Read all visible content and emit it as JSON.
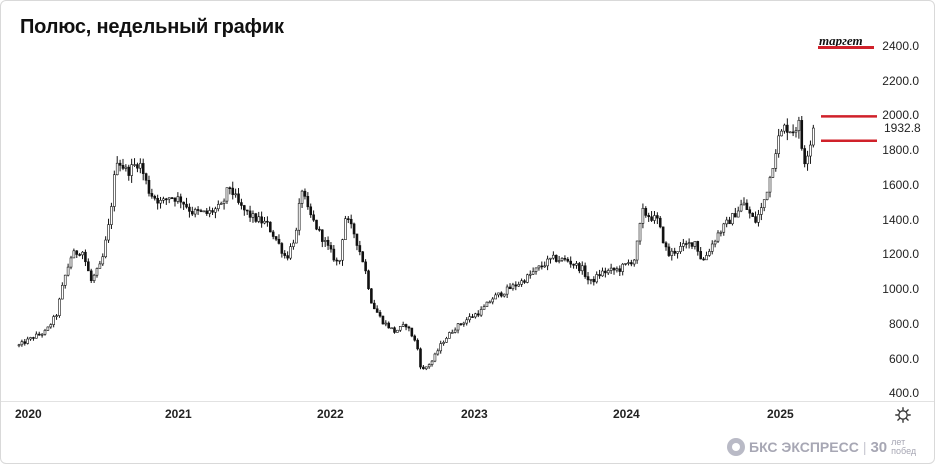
{
  "header": {
    "title": "Полюс, недельный график"
  },
  "annotations": {
    "target_label": "таргет",
    "last_price_label": "1932.8",
    "accent_color": "#d0212a"
  },
  "brand": {
    "name": "БКС ЭКСПРЕСС",
    "jubilee_number": "30",
    "jubilee_text_1": "лет",
    "jubilee_text_2": "побед"
  },
  "icons": {
    "settings": "gear-icon"
  },
  "chart_data": {
    "type": "candlestick",
    "title": "Полюс, недельный график",
    "x_ticks": [
      "2020",
      "2021",
      "2022",
      "2023",
      "2024",
      "2025"
    ],
    "y_ticks": [
      "400.0",
      "600.0",
      "800.0",
      "1000.0",
      "1200.0",
      "1400.0",
      "1600.0",
      "1800.0",
      "2000.0",
      "2200.0",
      "2400.0"
    ],
    "ylim": [
      380,
      2480
    ],
    "xlim": [
      2019.98,
      2025.55
    ],
    "grid": false,
    "horizontal_levels": [
      {
        "value": 2400,
        "label": "таргет",
        "color": "#d0212a"
      },
      {
        "value": 2000,
        "color": "#d0212a"
      },
      {
        "value": 1860,
        "color": "#d0212a"
      }
    ],
    "last_value": 1932.8,
    "price_path": [
      [
        2020.0,
        680
      ],
      [
        2020.1,
        730
      ],
      [
        2020.18,
        760
      ],
      [
        2020.25,
        860
      ],
      [
        2020.3,
        1060
      ],
      [
        2020.35,
        1200
      ],
      [
        2020.42,
        1230
      ],
      [
        2020.48,
        1050
      ],
      [
        2020.55,
        1150
      ],
      [
        2020.6,
        1380
      ],
      [
        2020.65,
        1760
      ],
      [
        2020.72,
        1680
      ],
      [
        2020.8,
        1740
      ],
      [
        2020.87,
        1560
      ],
      [
        2020.95,
        1500
      ],
      [
        2021.0,
        1540
      ],
      [
        2021.08,
        1520
      ],
      [
        2021.15,
        1450
      ],
      [
        2021.25,
        1440
      ],
      [
        2021.35,
        1480
      ],
      [
        2021.4,
        1600
      ],
      [
        2021.47,
        1480
      ],
      [
        2021.55,
        1420
      ],
      [
        2021.65,
        1380
      ],
      [
        2021.72,
        1280
      ],
      [
        2021.78,
        1180
      ],
      [
        2021.85,
        1340
      ],
      [
        2021.88,
        1600
      ],
      [
        2021.92,
        1460
      ],
      [
        2022.0,
        1330
      ],
      [
        2022.08,
        1210
      ],
      [
        2022.13,
        1140
      ],
      [
        2022.17,
        1420
      ],
      [
        2022.23,
        1330
      ],
      [
        2022.3,
        1140
      ],
      [
        2022.35,
        920
      ],
      [
        2022.42,
        820
      ],
      [
        2022.5,
        760
      ],
      [
        2022.58,
        800
      ],
      [
        2022.65,
        680
      ],
      [
        2022.68,
        530
      ],
      [
        2022.75,
        590
      ],
      [
        2022.82,
        700
      ],
      [
        2022.9,
        780
      ],
      [
        2023.0,
        840
      ],
      [
        2023.08,
        880
      ],
      [
        2023.15,
        950
      ],
      [
        2023.25,
        1000
      ],
      [
        2023.35,
        1050
      ],
      [
        2023.45,
        1120
      ],
      [
        2023.55,
        1180
      ],
      [
        2023.65,
        1170
      ],
      [
        2023.75,
        1120
      ],
      [
        2023.8,
        1040
      ],
      [
        2023.88,
        1100
      ],
      [
        2024.0,
        1120
      ],
      [
        2024.1,
        1180
      ],
      [
        2024.15,
        1450
      ],
      [
        2024.25,
        1400
      ],
      [
        2024.32,
        1200
      ],
      [
        2024.4,
        1240
      ],
      [
        2024.5,
        1280
      ],
      [
        2024.55,
        1160
      ],
      [
        2024.65,
        1320
      ],
      [
        2024.75,
        1420
      ],
      [
        2024.82,
        1500
      ],
      [
        2024.9,
        1390
      ],
      [
        2024.95,
        1480
      ],
      [
        2025.0,
        1650
      ],
      [
        2025.05,
        1860
      ],
      [
        2025.1,
        1940
      ],
      [
        2025.15,
        1920
      ],
      [
        2025.2,
        1960
      ],
      [
        2025.22,
        1720
      ],
      [
        2025.25,
        1800
      ],
      [
        2025.3,
        1932.8
      ]
    ]
  }
}
